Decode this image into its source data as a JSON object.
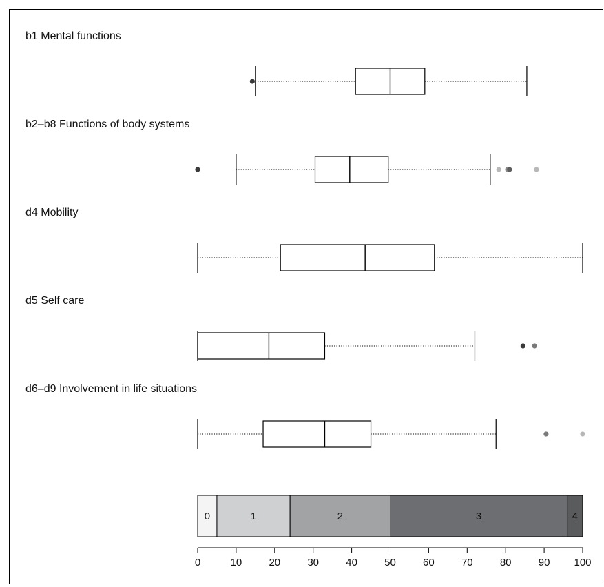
{
  "chart_data": {
    "type": "boxplot",
    "xlim": [
      0,
      100
    ],
    "x_ticks": [
      0,
      10,
      20,
      30,
      40,
      50,
      60,
      70,
      80,
      90,
      100
    ],
    "grid": false,
    "series": [
      {
        "name": "b1 Mental functions",
        "whisker_low": 15,
        "q1": 41,
        "median": 50,
        "q3": 59,
        "whisker_high": 85.5,
        "outliers": [
          {
            "value": 14.2,
            "shade": "#3a3a3a"
          }
        ]
      },
      {
        "name": "b2–b8 Functions of body systems",
        "whisker_low": 10,
        "q1": 30.5,
        "median": 39.5,
        "q3": 49.5,
        "whisker_high": 76,
        "outliers": [
          {
            "value": 0,
            "shade": "#3a3a3a"
          },
          {
            "value": 78.2,
            "shade": "#b8b8b8"
          },
          {
            "value": 80.5,
            "shade": "#8a8a8a"
          },
          {
            "value": 81,
            "shade": "#5e5e5e"
          },
          {
            "value": 88,
            "shade": "#b8b8b8"
          }
        ]
      },
      {
        "name": "d4 Mobility",
        "whisker_low": 0,
        "q1": 21.5,
        "median": 43.5,
        "q3": 61.5,
        "whisker_high": 100,
        "outliers": []
      },
      {
        "name": "d5 Self care",
        "whisker_low": 0,
        "q1": 0,
        "median": 18.5,
        "q3": 33,
        "whisker_high": 72,
        "outliers": [
          {
            "value": 84.5,
            "shade": "#3a3a3a"
          },
          {
            "value": 87.5,
            "shade": "#7a7a7a"
          }
        ]
      },
      {
        "name": "d6–d9 Involvement in life situations",
        "whisker_low": 0,
        "q1": 17,
        "median": 33,
        "q3": 45,
        "whisker_high": 77.5,
        "outliers": [
          {
            "value": 90.5,
            "shade": "#7a7a7a"
          },
          {
            "value": 100,
            "shade": "#b8b8b8"
          }
        ]
      }
    ],
    "severity_scale": [
      {
        "label": "0",
        "from": 0,
        "to": 5,
        "color": "#f4f4f4"
      },
      {
        "label": "1",
        "from": 5,
        "to": 24,
        "color": "#cfd0d2"
      },
      {
        "label": "2",
        "from": 24,
        "to": 50,
        "color": "#a2a3a5"
      },
      {
        "label": "3",
        "from": 50,
        "to": 96,
        "color": "#6d6e71"
      },
      {
        "label": "4",
        "from": 96,
        "to": 100,
        "color": "#5a5b5d"
      }
    ]
  }
}
